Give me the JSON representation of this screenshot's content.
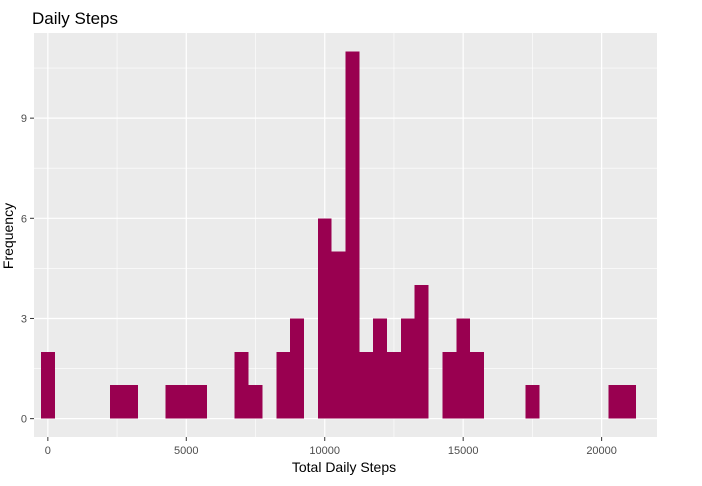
{
  "chart_data": {
    "type": "bar",
    "title": "Daily Steps",
    "xlabel": "Total Daily Steps",
    "ylabel": "Frequency",
    "xlim": [
      -500,
      22000
    ],
    "ylim": [
      -0.55,
      11.55
    ],
    "x_ticks": [
      0,
      5000,
      10000,
      15000,
      20000
    ],
    "y_ticks": [
      0,
      3,
      6,
      9
    ],
    "grid": true,
    "bin_width": 500,
    "bins": [
      {
        "start": -250,
        "end": 250,
        "count": 2
      },
      {
        "start": 2250,
        "end": 2750,
        "count": 1
      },
      {
        "start": 2750,
        "end": 3250,
        "count": 1
      },
      {
        "start": 4250,
        "end": 4750,
        "count": 1
      },
      {
        "start": 4750,
        "end": 5250,
        "count": 1
      },
      {
        "start": 5250,
        "end": 5750,
        "count": 1
      },
      {
        "start": 6750,
        "end": 7250,
        "count": 2
      },
      {
        "start": 7250,
        "end": 7750,
        "count": 1
      },
      {
        "start": 8250,
        "end": 8750,
        "count": 2
      },
      {
        "start": 8750,
        "end": 9250,
        "count": 3
      },
      {
        "start": 9750,
        "end": 10250,
        "count": 6
      },
      {
        "start": 10250,
        "end": 10750,
        "count": 5
      },
      {
        "start": 10750,
        "end": 11250,
        "count": 11
      },
      {
        "start": 11250,
        "end": 11750,
        "count": 2
      },
      {
        "start": 11750,
        "end": 12250,
        "count": 3
      },
      {
        "start": 12250,
        "end": 12750,
        "count": 2
      },
      {
        "start": 12750,
        "end": 13250,
        "count": 3
      },
      {
        "start": 13250,
        "end": 13750,
        "count": 4
      },
      {
        "start": 14250,
        "end": 14750,
        "count": 2
      },
      {
        "start": 14750,
        "end": 15250,
        "count": 3
      },
      {
        "start": 15250,
        "end": 15750,
        "count": 2
      },
      {
        "start": 17250,
        "end": 17750,
        "count": 1
      },
      {
        "start": 20250,
        "end": 20750,
        "count": 1
      },
      {
        "start": 20750,
        "end": 21250,
        "count": 1
      }
    ],
    "colors": {
      "bar": "#990050",
      "panel": "#ebebeb",
      "grid": "#ffffff"
    }
  }
}
